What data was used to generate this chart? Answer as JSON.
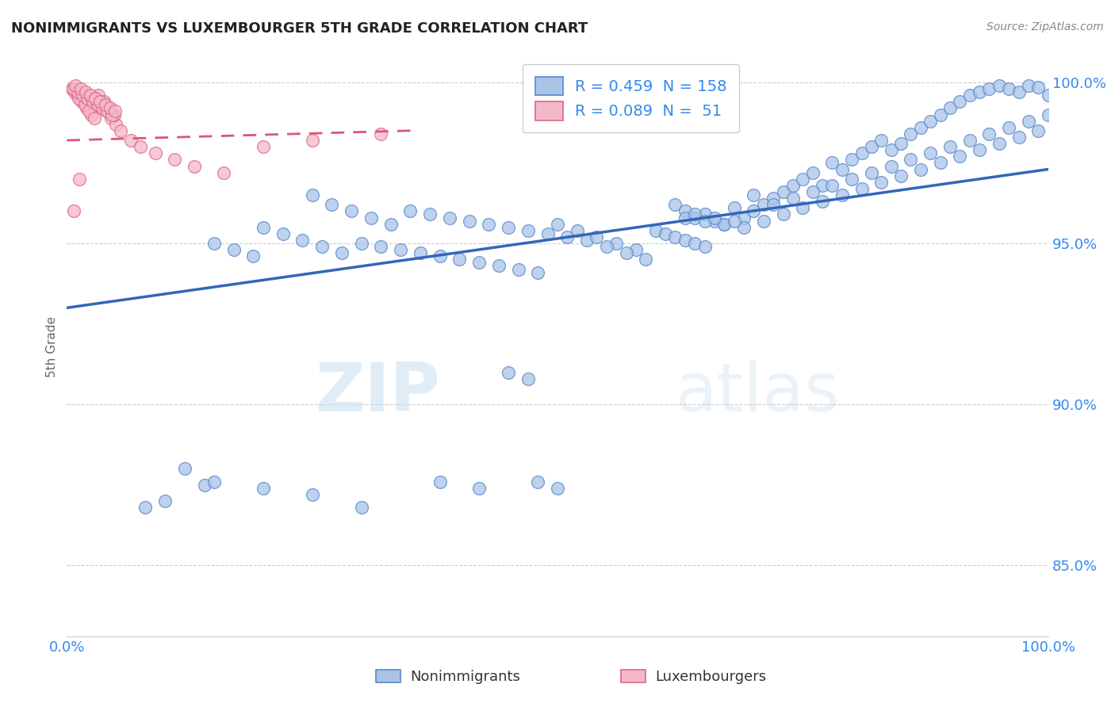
{
  "title": "NONIMMIGRANTS VS LUXEMBOURGER 5TH GRADE CORRELATION CHART",
  "source": "Source: ZipAtlas.com",
  "ylabel": "5th Grade",
  "xlim": [
    0,
    1
  ],
  "ylim": [
    0.828,
    1.008
  ],
  "yticks": [
    0.85,
    0.9,
    0.95,
    1.0
  ],
  "ytick_labels": [
    "85.0%",
    "90.0%",
    "95.0%",
    "100.0%"
  ],
  "xtick_labels": [
    "0.0%",
    "100.0%"
  ],
  "blue_R": 0.459,
  "blue_N": 158,
  "pink_R": 0.089,
  "pink_N": 51,
  "blue_color": "#aac4e8",
  "pink_color": "#f5b8c8",
  "blue_edge_color": "#5588cc",
  "pink_edge_color": "#dd6688",
  "blue_line_color": "#3366bb",
  "pink_line_color": "#dd5577",
  "legend_label_blue": "Nonimmigrants",
  "legend_label_pink": "Luxembourgers",
  "watermark_zip": "ZIP",
  "watermark_atlas": "atlas",
  "blue_trend_x0": 0.0,
  "blue_trend_y0": 0.93,
  "blue_trend_x1": 1.0,
  "blue_trend_y1": 0.973,
  "pink_trend_x0": 0.0,
  "pink_trend_y0": 0.982,
  "pink_trend_x1": 0.35,
  "pink_trend_y1": 0.985,
  "blue_scatter_x": [
    0.62,
    0.63,
    0.64,
    0.65,
    0.66,
    0.67,
    0.68,
    0.69,
    0.7,
    0.71,
    0.72,
    0.73,
    0.74,
    0.75,
    0.76,
    0.77,
    0.78,
    0.79,
    0.8,
    0.81,
    0.82,
    0.83,
    0.84,
    0.85,
    0.86,
    0.87,
    0.88,
    0.89,
    0.9,
    0.91,
    0.92,
    0.93,
    0.94,
    0.95,
    0.96,
    0.97,
    0.98,
    0.99,
    1.0,
    0.63,
    0.65,
    0.67,
    0.69,
    0.71,
    0.73,
    0.75,
    0.77,
    0.79,
    0.81,
    0.83,
    0.85,
    0.87,
    0.89,
    0.91,
    0.93,
    0.95,
    0.97,
    0.99,
    0.64,
    0.66,
    0.68,
    0.7,
    0.72,
    0.74,
    0.76,
    0.78,
    0.8,
    0.82,
    0.84,
    0.86,
    0.88,
    0.9,
    0.92,
    0.94,
    0.96,
    0.98,
    1.0,
    0.6,
    0.61,
    0.62,
    0.63,
    0.64,
    0.65,
    0.35,
    0.37,
    0.39,
    0.41,
    0.43,
    0.45,
    0.47,
    0.49,
    0.51,
    0.53,
    0.3,
    0.32,
    0.34,
    0.36,
    0.38,
    0.4,
    0.42,
    0.44,
    0.46,
    0.48,
    0.25,
    0.27,
    0.29,
    0.31,
    0.33,
    0.2,
    0.22,
    0.24,
    0.26,
    0.28,
    0.5,
    0.52,
    0.54,
    0.56,
    0.58,
    0.15,
    0.17,
    0.19,
    0.12,
    0.14,
    0.1,
    0.08,
    0.55,
    0.57,
    0.59,
    0.45,
    0.47,
    0.38,
    0.42
  ],
  "blue_scatter_y": [
    0.962,
    0.96,
    0.958,
    0.959,
    0.957,
    0.956,
    0.961,
    0.958,
    0.965,
    0.962,
    0.964,
    0.966,
    0.968,
    0.97,
    0.972,
    0.968,
    0.975,
    0.973,
    0.976,
    0.978,
    0.98,
    0.982,
    0.979,
    0.981,
    0.984,
    0.986,
    0.988,
    0.99,
    0.992,
    0.994,
    0.996,
    0.997,
    0.998,
    0.999,
    0.998,
    0.997,
    0.999,
    0.9985,
    0.996,
    0.958,
    0.957,
    0.956,
    0.955,
    0.957,
    0.959,
    0.961,
    0.963,
    0.965,
    0.967,
    0.969,
    0.971,
    0.973,
    0.975,
    0.977,
    0.979,
    0.981,
    0.983,
    0.985,
    0.959,
    0.958,
    0.957,
    0.96,
    0.962,
    0.964,
    0.966,
    0.968,
    0.97,
    0.972,
    0.974,
    0.976,
    0.978,
    0.98,
    0.982,
    0.984,
    0.986,
    0.988,
    0.99,
    0.954,
    0.953,
    0.952,
    0.951,
    0.95,
    0.949,
    0.96,
    0.959,
    0.958,
    0.957,
    0.956,
    0.955,
    0.954,
    0.953,
    0.952,
    0.951,
    0.95,
    0.949,
    0.948,
    0.947,
    0.946,
    0.945,
    0.944,
    0.943,
    0.942,
    0.941,
    0.965,
    0.962,
    0.96,
    0.958,
    0.956,
    0.955,
    0.953,
    0.951,
    0.949,
    0.947,
    0.956,
    0.954,
    0.952,
    0.95,
    0.948,
    0.95,
    0.948,
    0.946,
    0.88,
    0.875,
    0.87,
    0.868,
    0.949,
    0.947,
    0.945,
    0.91,
    0.908,
    0.876,
    0.874
  ],
  "blue_outlier_x": [
    0.15,
    0.2,
    0.25,
    0.3,
    0.48,
    0.5
  ],
  "blue_outlier_y": [
    0.876,
    0.874,
    0.872,
    0.868,
    0.876,
    0.874
  ],
  "pink_scatter_x": [
    0.005,
    0.01,
    0.015,
    0.02,
    0.025,
    0.03,
    0.035,
    0.04,
    0.045,
    0.05,
    0.008,
    0.012,
    0.018,
    0.022,
    0.028,
    0.032,
    0.038,
    0.042,
    0.048,
    0.006,
    0.011,
    0.016,
    0.021,
    0.026,
    0.031,
    0.036,
    0.041,
    0.046,
    0.009,
    0.014,
    0.019,
    0.024,
    0.029,
    0.034,
    0.039,
    0.044,
    0.049,
    0.055,
    0.065,
    0.075,
    0.09,
    0.11,
    0.13,
    0.16,
    0.2,
    0.25,
    0.32,
    0.007,
    0.013
  ],
  "pink_scatter_y": [
    0.998,
    0.996,
    0.994,
    0.992,
    0.99,
    0.995,
    0.993,
    0.991,
    0.989,
    0.987,
    0.997,
    0.995,
    0.993,
    0.991,
    0.989,
    0.996,
    0.994,
    0.992,
    0.99,
    0.998,
    0.997,
    0.996,
    0.995,
    0.994,
    0.993,
    0.992,
    0.991,
    0.99,
    0.999,
    0.998,
    0.997,
    0.996,
    0.995,
    0.994,
    0.993,
    0.992,
    0.991,
    0.985,
    0.982,
    0.98,
    0.978,
    0.976,
    0.974,
    0.972,
    0.98,
    0.982,
    0.984,
    0.96,
    0.97
  ]
}
